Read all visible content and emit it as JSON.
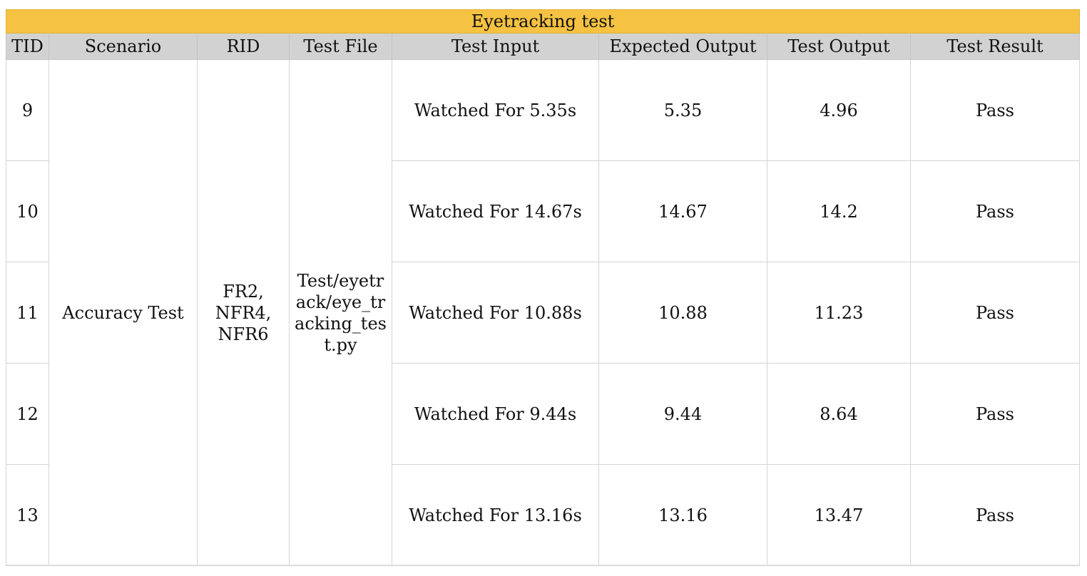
{
  "title": "Eyetracking test",
  "columns": {
    "tid": "TID",
    "scenario": "Scenario",
    "rid": "RID",
    "test_file": "Test File",
    "test_input": "Test Input",
    "expected_output": "Expected Output",
    "test_output": "Test Output",
    "test_result": "Test Result"
  },
  "merged": {
    "scenario": "Accuracy Test",
    "rid": "FR2,\nNFR4,\nNFR6",
    "test_file": "Test/eyetrack/eye_tracking_test.py"
  },
  "rows": [
    {
      "tid": "9",
      "test_input": "Watched For 5.35s",
      "expected_output": "5.35",
      "test_output": "4.96",
      "test_result": "Pass"
    },
    {
      "tid": "10",
      "test_input": "Watched For 14.67s",
      "expected_output": "14.67",
      "test_output": "14.2",
      "test_result": "Pass"
    },
    {
      "tid": "11",
      "test_input": "Watched For 10.88s",
      "expected_output": "10.88",
      "test_output": "11.23",
      "test_result": "Pass"
    },
    {
      "tid": "12",
      "test_input": "Watched For 9.44s",
      "expected_output": "9.44",
      "test_output": "8.64",
      "test_result": "Pass"
    },
    {
      "tid": "13",
      "test_input": "Watched For 13.16s",
      "expected_output": "13.16",
      "test_output": "13.47",
      "test_result": "Pass"
    }
  ],
  "colors": {
    "title_background": "#f5c242",
    "header_background": "#d2d2d2",
    "grid_line": "#d4d4d4"
  }
}
